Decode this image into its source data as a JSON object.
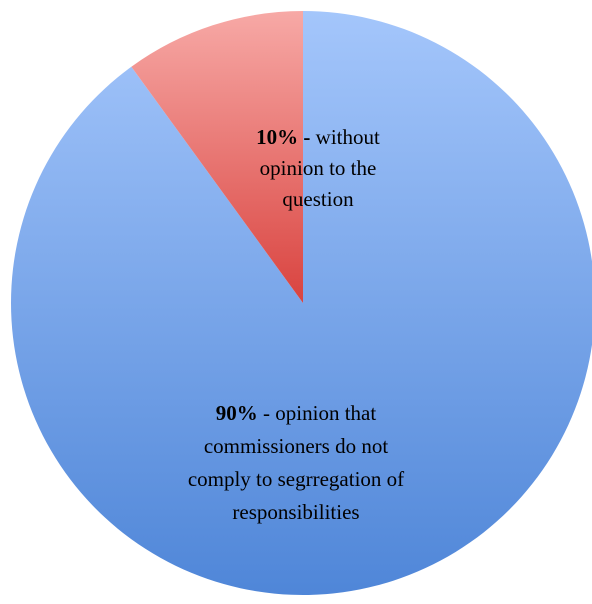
{
  "chart_data": {
    "type": "pie",
    "title": "",
    "start_angle_deg": 0,
    "direction": "clockwise",
    "slices": [
      {
        "value": 90,
        "color_top": "#a4c6fb",
        "color_bottom": "#4f86d8",
        "label_parts": [
          [
            "90%",
            true
          ],
          [
            " - opinion that",
            false
          ],
          [
            "commissioners do not",
            false
          ],
          [
            "comply to segrregation of",
            false
          ],
          [
            "responsibilities",
            false
          ]
        ],
        "label_lines": [
          0,
          1,
          2,
          3
        ]
      },
      {
        "value": 10,
        "color_top": "#f7a9a6",
        "color_bottom": "#d9433f",
        "label_parts": [
          [
            "10% -",
            true
          ],
          [
            " without",
            false
          ],
          [
            "opinion to the",
            false
          ],
          [
            "question",
            false
          ]
        ],
        "label_lines": [
          0,
          1,
          2
        ]
      }
    ]
  }
}
